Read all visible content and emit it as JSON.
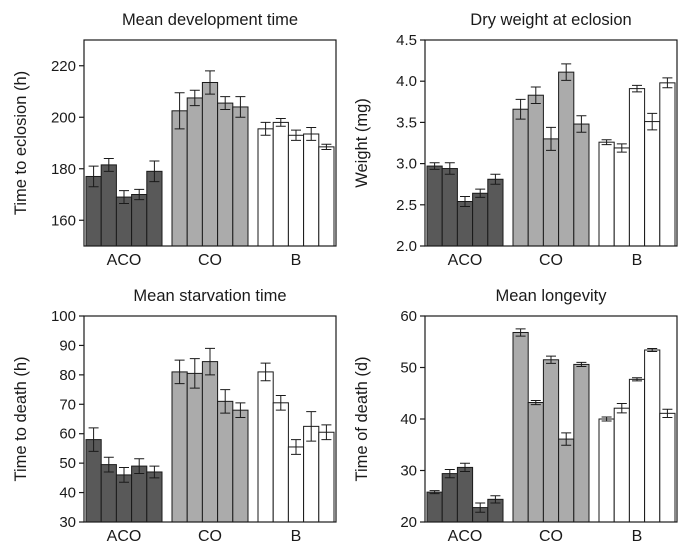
{
  "chart_data": [
    {
      "type": "bar",
      "title": "Mean development time",
      "ylabel": "Time to eclosion (h)",
      "ylim": [
        150,
        230
      ],
      "yticks": [
        160,
        180,
        200,
        220
      ],
      "groups": [
        "ACO",
        "CO",
        "B"
      ],
      "group_colors": [
        "#595959",
        "#ababab",
        "#ffffff"
      ],
      "values": [
        [
          177,
          181.5,
          169,
          170,
          179
        ],
        [
          202.5,
          207.5,
          213.5,
          205.5,
          204
        ],
        [
          195.5,
          198,
          193,
          193.5,
          188.5
        ]
      ],
      "errors": [
        [
          4,
          2.5,
          2.5,
          2,
          4
        ],
        [
          7,
          3,
          4.5,
          2.5,
          4
        ],
        [
          2.5,
          1.5,
          2,
          2.5,
          1
        ]
      ]
    },
    {
      "type": "bar",
      "title": "Dry weight at eclosion",
      "ylabel": "Weight (mg)",
      "ylim": [
        2.0,
        4.5
      ],
      "yticks": [
        "2.0",
        "2.5",
        "3.0",
        "3.5",
        "4.0",
        "4.5"
      ],
      "groups": [
        "ACO",
        "CO",
        "B"
      ],
      "group_colors": [
        "#595959",
        "#ababab",
        "#ffffff"
      ],
      "values": [
        [
          2.97,
          2.94,
          2.54,
          2.64,
          2.81
        ],
        [
          3.66,
          3.83,
          3.3,
          4.11,
          3.48
        ],
        [
          3.26,
          3.19,
          3.91,
          3.51,
          3.98
        ]
      ],
      "errors": [
        [
          0.04,
          0.07,
          0.06,
          0.05,
          0.06
        ],
        [
          0.12,
          0.1,
          0.14,
          0.1,
          0.1
        ],
        [
          0.03,
          0.05,
          0.04,
          0.1,
          0.06
        ]
      ]
    },
    {
      "type": "bar",
      "title": "Mean starvation time",
      "ylabel": "Time to death (h)",
      "ylim": [
        30,
        100
      ],
      "yticks": [
        30,
        40,
        50,
        60,
        70,
        80,
        90,
        100
      ],
      "groups": [
        "ACO",
        "CO",
        "B"
      ],
      "group_colors": [
        "#595959",
        "#ababab",
        "#ffffff"
      ],
      "values": [
        [
          58,
          49.5,
          46,
          49,
          47
        ],
        [
          81,
          80.5,
          84.5,
          71,
          68
        ],
        [
          81,
          70.5,
          55.5,
          62.5,
          60.5
        ]
      ],
      "errors": [
        [
          4,
          2.5,
          2.5,
          2.5,
          2
        ],
        [
          4,
          5,
          4.5,
          4,
          2.5
        ],
        [
          3,
          2.5,
          2.5,
          5,
          2.5
        ]
      ]
    },
    {
      "type": "bar",
      "title": "Mean longevity",
      "ylabel": "Time of death (d)",
      "ylim": [
        20,
        60
      ],
      "yticks": [
        20,
        30,
        40,
        50,
        60
      ],
      "groups": [
        "ACO",
        "CO",
        "B"
      ],
      "group_colors": [
        "#595959",
        "#ababab",
        "#ffffff"
      ],
      "values": [
        [
          25.8,
          29.4,
          30.6,
          22.8,
          24.4
        ],
        [
          56.8,
          43.2,
          51.5,
          36.1,
          50.6
        ],
        [
          40,
          42.1,
          47.7,
          53.4,
          41.1
        ]
      ],
      "errors": [
        [
          0.3,
          0.8,
          0.8,
          0.9,
          0.7
        ],
        [
          0.7,
          0.4,
          0.7,
          1.2,
          0.4
        ],
        [
          0.4,
          0.9,
          0.3,
          0.3,
          0.8
        ]
      ]
    }
  ]
}
